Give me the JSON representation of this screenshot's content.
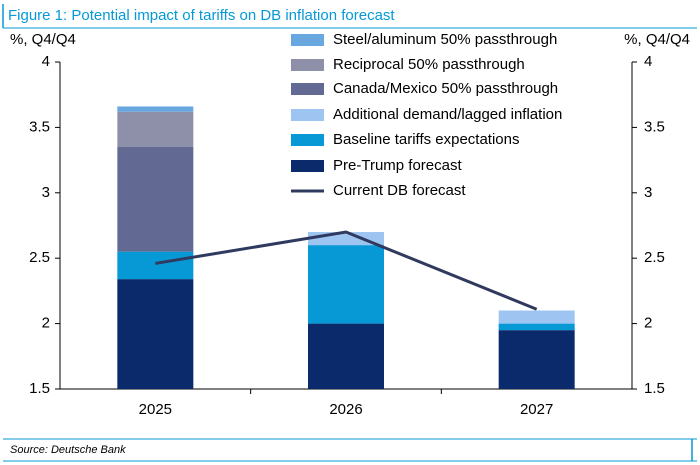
{
  "chart_data": {
    "type": "stacked_bar_line",
    "title": "Figure 1: Potential impact of tariffs on DB inflation forecast",
    "y_label": "%, Q4/Q4",
    "y2_label": "%, Q4/Q4",
    "source": "Source: Deutsche Bank",
    "categories": [
      "2025",
      "2026",
      "2027"
    ],
    "series": [
      {
        "name": "Pre-Trump forecast",
        "color": "#0b2a6b",
        "values": [
          2.34,
          2.0,
          1.95
        ]
      },
      {
        "name": "Baseline tariffs expectations",
        "color": "#0699d6",
        "values": [
          0.21,
          0.6,
          0.05
        ]
      },
      {
        "name": "Additional demand/lagged inflation",
        "color": "#9ec4f2",
        "values": [
          0,
          0.1,
          0.1
        ]
      },
      {
        "name": "Canada/Mexico 50% passthrough",
        "color": "#626a93",
        "values": [
          0.8,
          0,
          0
        ]
      },
      {
        "name": "Reciprocal 50% passthrough",
        "color": "#8e90aa",
        "values": [
          0.27,
          0,
          0
        ]
      },
      {
        "name": "Steel/aluminum 50% passthrough",
        "color": "#68a7e0",
        "values": [
          0.04,
          0,
          0
        ]
      }
    ],
    "line": {
      "name": "Current DB forecast",
      "color": "#2f3a5e",
      "values": [
        2.46,
        2.7,
        2.11
      ]
    },
    "ylim": [
      1.5,
      4
    ],
    "yticks": [
      1.5,
      2,
      2.5,
      3,
      3.5,
      4
    ],
    "y2lim": [
      1.5,
      4
    ],
    "y2ticks": [
      1.5,
      2,
      2.5,
      3,
      3.5,
      4
    ]
  }
}
